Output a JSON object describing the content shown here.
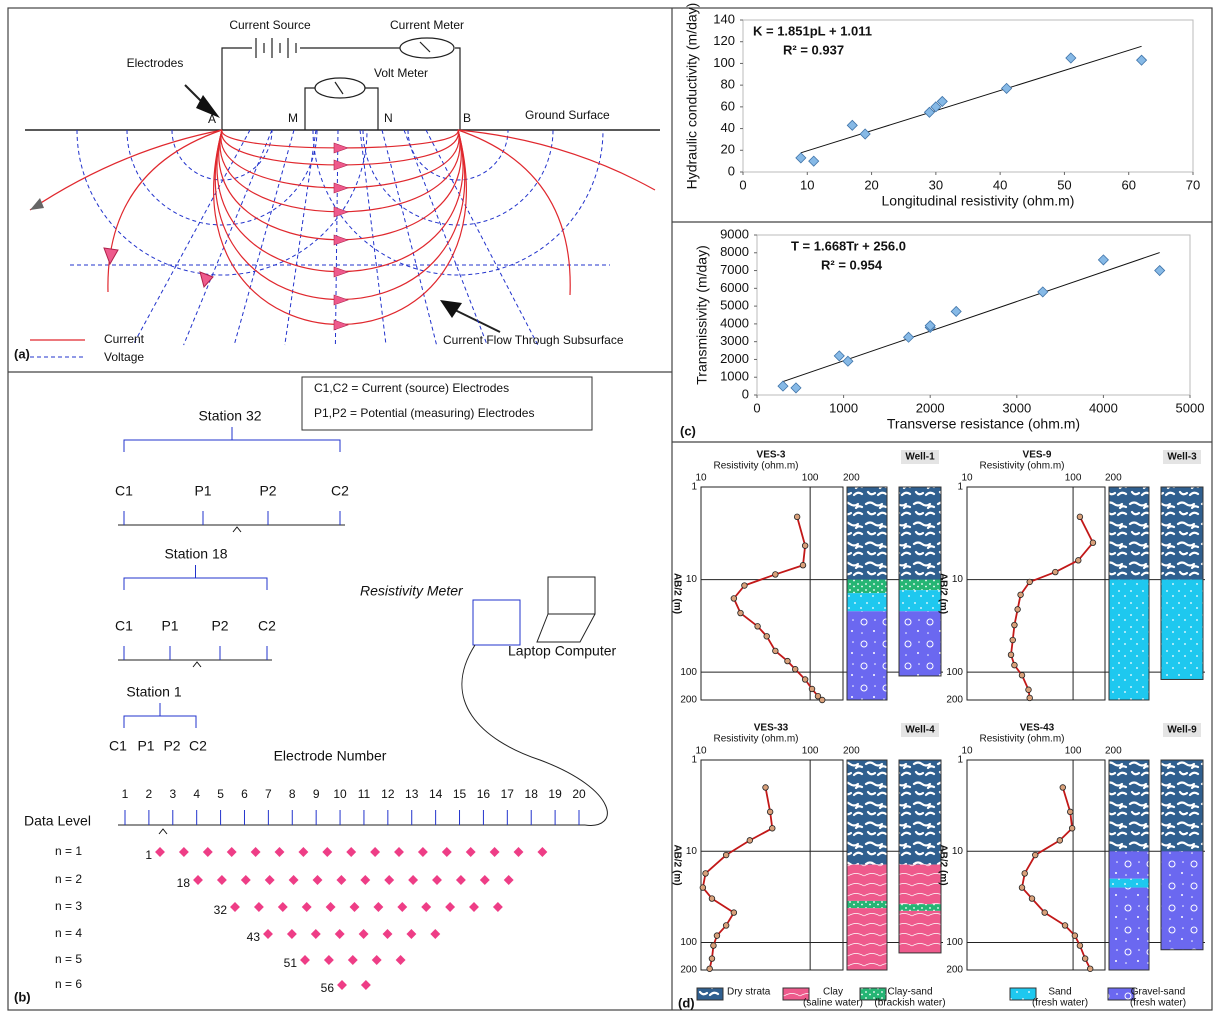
{
  "panel_a": {
    "label": "(a)",
    "current_source": "Current Source",
    "current_meter": "Current Meter",
    "volt_meter": "Volt Meter",
    "electrodes": "Electrodes",
    "A": "A",
    "M": "M",
    "N": "N",
    "B": "B",
    "ground_surface": "Ground Surface",
    "flow": "Current Flow Through Subsurface",
    "legend_current": "Current",
    "legend_voltage": "Voltage"
  },
  "panel_b": {
    "label": "(b)",
    "legend_c": "C1,C2 = Current (source) Electrodes",
    "legend_p": "P1,P2 = Potential (measuring) Electrodes",
    "stations": [
      {
        "name": "Station 32",
        "electrodes": [
          "C1",
          "P1",
          "P2",
          "C2"
        ]
      },
      {
        "name": "Station 18",
        "electrodes": [
          "C1",
          "P1",
          "P2",
          "C2"
        ]
      },
      {
        "name": "Station 1",
        "electrodes": [
          "C1",
          "P1",
          "P2",
          "C2"
        ]
      }
    ],
    "resistivity_meter": "Resistivity Meter",
    "laptop": "Laptop Computer",
    "electrode_number": "Electrode Number",
    "electrode_numbers": [
      1,
      2,
      3,
      4,
      5,
      6,
      7,
      8,
      9,
      10,
      11,
      12,
      13,
      14,
      15,
      16,
      17,
      18,
      19,
      20
    ],
    "data_level": "Data Level",
    "levels": [
      "n = 1",
      "n = 2",
      "n = 3",
      "n = 4",
      "n = 5",
      "n = 6"
    ],
    "level_points": [
      1,
      18,
      32,
      43,
      51,
      56
    ]
  },
  "panel_c_label": "(c)",
  "chart_data": [
    {
      "type": "scatter",
      "x_label": "Longitudinal resistivity (ohm.m)",
      "y_label": "Hydraulic conductivity (m/day)",
      "x": [
        9,
        11,
        17,
        19,
        29,
        30,
        31,
        41,
        51,
        62
      ],
      "values": [
        13,
        10,
        43,
        35,
        55,
        60,
        65,
        77,
        105,
        103
      ],
      "xlim": [
        0,
        70
      ],
      "xticks": [
        0,
        10,
        20,
        30,
        40,
        50,
        60,
        70
      ],
      "ylim": [
        0,
        140
      ],
      "yticks": [
        0,
        20,
        40,
        60,
        80,
        100,
        120,
        140
      ],
      "color": "#86b9e6",
      "trendline": {
        "slope": 1.851,
        "intercept": 1.011
      },
      "equation": "K = 1.851pL + 1.011",
      "r2": "R² = 0.937"
    },
    {
      "type": "scatter",
      "x_label": "Transverse resistance (ohm.m)",
      "y_label": "Transmissivity (m/day)",
      "x": [
        300,
        450,
        950,
        1050,
        1750,
        2000,
        2000,
        2300,
        3300,
        4000,
        4650
      ],
      "values": [
        500,
        400,
        2200,
        1900,
        3250,
        3800,
        3900,
        4700,
        5800,
        7600,
        7000
      ],
      "xlim": [
        0,
        5000
      ],
      "xticks": [
        0,
        1000,
        2000,
        3000,
        4000,
        5000
      ],
      "ylim": [
        0,
        9000
      ],
      "yticks": [
        0,
        1000,
        2000,
        3000,
        4000,
        5000,
        6000,
        7000,
        8000,
        9000
      ],
      "color": "#86b9e6",
      "trendline": {
        "slope": 1.668,
        "intercept": 256.0
      },
      "equation": "T = 1.668Tr + 256.0",
      "r2": "R² = 0.954"
    }
  ],
  "panel_d": {
    "label": "(d)",
    "x_label": "Resistivity (ohm.m)",
    "y_label": "AB/2 (m)",
    "xlim": [
      10,
      200
    ],
    "xticks": [
      10,
      100,
      200
    ],
    "ylim": [
      1,
      200
    ],
    "yticks": [
      1,
      10,
      100,
      200
    ],
    "ves": [
      {
        "name": "VES-3",
        "well": "Well-1",
        "resistivity": [
          76,
          90,
          86,
          48,
          25,
          20,
          23,
          33,
          40,
          48,
          62,
          73,
          90,
          104,
          118,
          129
        ],
        "depth": [
          2.1,
          4.3,
          7.0,
          8.8,
          11.6,
          16,
          23,
          32,
          41,
          59,
          76,
          93,
          120,
          152,
          182,
          200
        ],
        "ves_layers": [
          {
            "lith": 0,
            "top": 1,
            "bottom": 10
          },
          {
            "lith": 2,
            "top": 10,
            "bottom": 14
          },
          {
            "lith": 3,
            "top": 14,
            "bottom": 22
          },
          {
            "lith": 4,
            "top": 22,
            "bottom": 200
          }
        ],
        "well_layers": [
          {
            "lith": 0,
            "top": 1,
            "bottom": 10
          },
          {
            "lith": 2,
            "top": 10,
            "bottom": 13
          },
          {
            "lith": 3,
            "top": 13,
            "bottom": 22
          },
          {
            "lith": 4,
            "top": 22,
            "bottom": 110
          }
        ]
      },
      {
        "name": "VES-9",
        "well": "Well-3",
        "resistivity": [
          116,
          154,
          112,
          68,
          39,
          32,
          30,
          28,
          27,
          26,
          28,
          33,
          38,
          39
        ],
        "depth": [
          2.1,
          4.0,
          6.2,
          8.3,
          10.6,
          14.6,
          21,
          31,
          45,
          65,
          84,
          108,
          155,
          190
        ],
        "ves_layers": [
          {
            "lith": 0,
            "top": 1,
            "bottom": 10
          },
          {
            "lith": 3,
            "top": 10,
            "bottom": 200
          }
        ],
        "well_layers": [
          {
            "lith": 0,
            "top": 1,
            "bottom": 10
          },
          {
            "lith": 3,
            "top": 10,
            "bottom": 120
          }
        ]
      },
      {
        "name": "VES-33",
        "well": "Well-4",
        "resistivity": [
          39,
          43,
          45,
          28,
          17,
          11,
          10.4,
          12.6,
          20,
          17,
          14,
          13,
          12.6,
          12
        ],
        "depth": [
          2.0,
          3.7,
          5.6,
          7.6,
          11,
          17.5,
          25,
          33,
          47,
          65,
          84,
          108,
          150,
          194
        ],
        "ves_layers": [
          {
            "lith": 0,
            "top": 1,
            "bottom": 14
          },
          {
            "lith": 1,
            "top": 14,
            "bottom": 35
          },
          {
            "lith": 2,
            "top": 35,
            "bottom": 42
          },
          {
            "lith": 1,
            "top": 42,
            "bottom": 200
          }
        ],
        "well_layers": [
          {
            "lith": 0,
            "top": 1,
            "bottom": 14
          },
          {
            "lith": 1,
            "top": 14,
            "bottom": 38
          },
          {
            "lith": 2,
            "top": 38,
            "bottom": 45
          },
          {
            "lith": 1,
            "top": 45,
            "bottom": 130
          }
        ]
      },
      {
        "name": "VES-43",
        "well": "Well-9",
        "resistivity": [
          80,
          94,
          98,
          75,
          44,
          35,
          33,
          41,
          54,
          84,
          104,
          116,
          130,
          145
        ],
        "depth": [
          2.0,
          3.7,
          5.6,
          7.6,
          11,
          17.5,
          25,
          33,
          47,
          65,
          84,
          108,
          150,
          194
        ],
        "ves_layers": [
          {
            "lith": 0,
            "top": 1,
            "bottom": 10
          },
          {
            "lith": 4,
            "top": 10,
            "bottom": 20
          },
          {
            "lith": 3,
            "top": 20,
            "bottom": 25
          },
          {
            "lith": 4,
            "top": 25,
            "bottom": 200
          }
        ],
        "well_layers": [
          {
            "lith": 0,
            "top": 1,
            "bottom": 10
          },
          {
            "lith": 4,
            "top": 10,
            "bottom": 120
          }
        ]
      }
    ],
    "legend": [
      {
        "name": "Dry strata"
      },
      {
        "name": "Clay",
        "note": "(saline water)"
      },
      {
        "name": "Clay-sand",
        "note": "(brackish water)"
      },
      {
        "name": "Sand",
        "note": "(fresh water)"
      },
      {
        "name": "Gravel-sand",
        "note": "(fresh water)"
      }
    ]
  }
}
